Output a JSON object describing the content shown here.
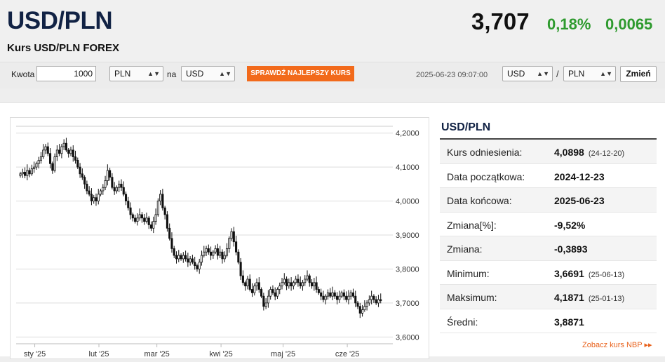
{
  "header": {
    "title": "USD/PLN",
    "subtitle": "Kurs USD/PLN FOREX",
    "price": "3,707",
    "change_pct": "0,18%",
    "change_abs": "0,0065"
  },
  "toolbar": {
    "amount_label": "Kwota",
    "amount_value": "1000",
    "from_currency": "PLN",
    "to_label": "na",
    "to_currency": "USD",
    "best_rate_label": "SPRAWDŹ NAJLEPSZY KURS",
    "datetime": "2025-06-23 09:07:00",
    "pair_base": "USD",
    "pair_separator": "/",
    "pair_quote": "PLN",
    "change_label": "Zmień"
  },
  "stats": {
    "title": "USD/PLN",
    "rows": [
      {
        "label": "Kurs odniesienia:",
        "value": "4,0898",
        "date": "(24-12-20)"
      },
      {
        "label": "Data początkowa:",
        "value": "2024-12-23",
        "date": ""
      },
      {
        "label": "Data końcowa:",
        "value": "2025-06-23",
        "date": ""
      },
      {
        "label": "Zmiana[%]:",
        "value": "-9,52%",
        "date": ""
      },
      {
        "label": "Zmiana:",
        "value": "-0,3893",
        "date": ""
      },
      {
        "label": "Minimum:",
        "value": "3,6691",
        "date": "(25-06-13)"
      },
      {
        "label": "Maksimum:",
        "value": "4,1871",
        "date": "(25-01-13)"
      },
      {
        "label": "Średni:",
        "value": "3,8871",
        "date": ""
      }
    ],
    "link_label": "Zobacz kurs NBP ▸▸"
  },
  "chart_data": {
    "type": "candlestick",
    "y_ticks": [
      "4,2000",
      "4,1000",
      "4,0000",
      "3,9000",
      "3,8000",
      "3,7000",
      "3,6000"
    ],
    "y_tick_values": [
      4.2,
      4.1,
      4.0,
      3.9,
      3.8,
      3.7,
      3.6
    ],
    "ylim": [
      3.58,
      4.22
    ],
    "x_ticks": [
      "sty '25",
      "lut '25",
      "mar '25",
      "kwi '25",
      "maj '25",
      "cze '25"
    ],
    "x_tick_days": [
      9,
      40,
      68,
      99,
      129,
      160
    ],
    "x_range_days": [
      0,
      182
    ],
    "grid": true,
    "close": [
      4.08,
      4.085,
      4.075,
      4.09,
      4.08,
      4.095,
      4.1,
      4.11,
      4.12,
      4.13,
      4.15,
      4.16,
      4.14,
      4.11,
      4.09,
      4.13,
      4.15,
      4.14,
      4.16,
      4.17,
      4.15,
      4.14,
      4.15,
      4.13,
      4.12,
      4.1,
      4.08,
      4.07,
      4.05,
      4.03,
      4.02,
      4.0,
      4.01,
      4.0,
      4.02,
      4.03,
      4.04,
      4.06,
      4.09,
      4.07,
      4.04,
      4.03,
      4.04,
      4.05,
      4.04,
      4.02,
      4.0,
      3.98,
      3.96,
      3.95,
      3.94,
      3.95,
      3.96,
      3.95,
      3.94,
      3.95,
      3.93,
      3.92,
      3.94,
      3.96,
      4.0,
      4.02,
      3.98,
      3.96,
      3.92,
      3.89,
      3.86,
      3.84,
      3.83,
      3.84,
      3.83,
      3.84,
      3.83,
      3.82,
      3.83,
      3.82,
      3.81,
      3.8,
      3.82,
      3.84,
      3.85,
      3.86,
      3.85,
      3.84,
      3.85,
      3.86,
      3.84,
      3.85,
      3.83,
      3.84,
      3.86,
      3.89,
      3.91,
      3.88,
      3.85,
      3.82,
      3.78,
      3.76,
      3.75,
      3.77,
      3.74,
      3.73,
      3.75,
      3.76,
      3.74,
      3.72,
      3.69,
      3.7,
      3.72,
      3.74,
      3.73,
      3.72,
      3.74,
      3.75,
      3.76,
      3.77,
      3.75,
      3.76,
      3.75,
      3.76,
      3.77,
      3.76,
      3.75,
      3.76,
      3.77,
      3.78,
      3.76,
      3.75,
      3.76,
      3.74,
      3.73,
      3.72,
      3.71,
      3.72,
      3.73,
      3.72,
      3.73,
      3.72,
      3.71,
      3.72,
      3.73,
      3.72,
      3.71,
      3.72,
      3.73,
      3.72,
      3.7,
      3.69,
      3.67,
      3.68,
      3.69,
      3.7,
      3.71,
      3.72,
      3.71,
      3.7,
      3.71,
      3.707
    ]
  }
}
